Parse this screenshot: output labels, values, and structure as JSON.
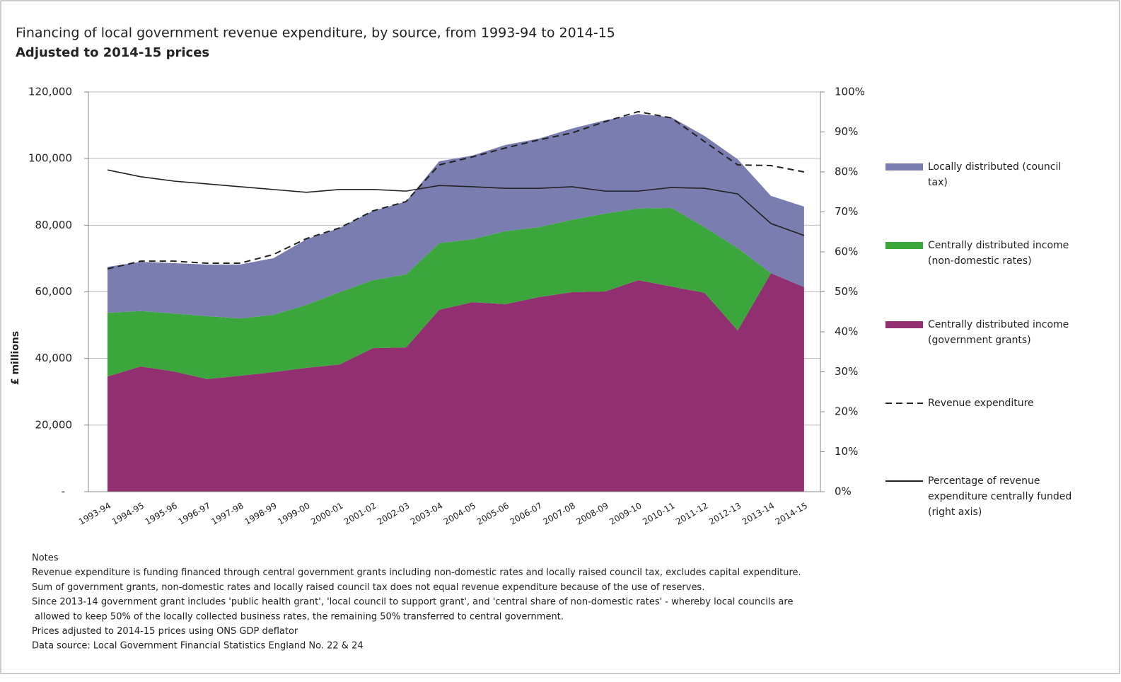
{
  "chart_data": {
    "type": "area",
    "title": "Financing of local government revenue expenditure, by source, from 1993-94 to 2014-15",
    "subtitle": "Adjusted to 2014-15 prices",
    "y_label": "£ millions",
    "categories": [
      "1993-94",
      "1994-95",
      "1995-96",
      "1996-97",
      "1997-98",
      "1998-99",
      "1999-00",
      "2000-01",
      "2001-02",
      "2002-03",
      "2003-04",
      "2004-05",
      "2005-06",
      "2006-07",
      "2007-08",
      "2008-09",
      "2009-10",
      "2010-11",
      "2011-12",
      "2012-13",
      "2013-14",
      "2014-15"
    ],
    "series": [
      {
        "name": "Locally distributed (council tax)",
        "type": "area",
        "color": "#797db0",
        "values": [
          13800,
          14800,
          15100,
          15500,
          16200,
          17000,
          19700,
          19300,
          20800,
          21900,
          24600,
          25100,
          25900,
          26600,
          27400,
          28000,
          28400,
          27200,
          27400,
          26700,
          23200,
          24200
        ]
      },
      {
        "name": "Centrally distributed income (non-domestic rates)",
        "type": "area",
        "color": "#3aa63c",
        "values": [
          19100,
          16600,
          17400,
          18900,
          17200,
          17200,
          18900,
          21700,
          20400,
          21900,
          20000,
          18900,
          21900,
          21000,
          21700,
          23400,
          21500,
          23600,
          19700,
          24700,
          0,
          0
        ]
      },
      {
        "name": "Centrally distributed income (government grants)",
        "type": "area",
        "color": "#922f70",
        "values": [
          34600,
          37600,
          36100,
          33800,
          34800,
          35900,
          37200,
          38200,
          43100,
          43300,
          54600,
          56900,
          56300,
          58400,
          59900,
          60100,
          63500,
          61600,
          59700,
          48400,
          65600,
          61400
        ]
      },
      {
        "name": "Revenue expenditure",
        "type": "line",
        "dash": true,
        "color": "#222222",
        "values": [
          66900,
          69200,
          69200,
          68600,
          68600,
          71200,
          76000,
          79200,
          84300,
          87100,
          98100,
          100500,
          103200,
          105600,
          107700,
          111100,
          114100,
          112200,
          105100,
          98100,
          97900,
          96000
        ]
      },
      {
        "name": "Percentage of revenue expenditure centrally funded (right axis)",
        "type": "line",
        "axis": "y2",
        "color": "#222222",
        "values": [
          80.5,
          78.8,
          77.7,
          77.0,
          76.3,
          75.6,
          74.9,
          75.6,
          75.6,
          75.2,
          76.6,
          76.3,
          75.9,
          75.9,
          76.3,
          75.2,
          75.2,
          76.1,
          75.9,
          74.5,
          67.1,
          64.1
        ]
      }
    ],
    "ylim": [
      0,
      120000
    ],
    "yticks": [
      {
        "value": 0,
        "label": "-"
      },
      {
        "value": 20000,
        "label": "20,000"
      },
      {
        "value": 40000,
        "label": "40,000"
      },
      {
        "value": 60000,
        "label": "60,000"
      },
      {
        "value": 80000,
        "label": "80,000"
      },
      {
        "value": 100000,
        "label": "100,000"
      },
      {
        "value": 120000,
        "label": "120,000"
      }
    ],
    "y2lim": [
      0,
      100
    ],
    "y2ticks": [
      {
        "value": 0,
        "label": "0%"
      },
      {
        "value": 10,
        "label": "10%"
      },
      {
        "value": 20,
        "label": "20%"
      },
      {
        "value": 30,
        "label": "30%"
      },
      {
        "value": 40,
        "label": "40%"
      },
      {
        "value": 50,
        "label": "50%"
      },
      {
        "value": 60,
        "label": "60%"
      },
      {
        "value": 70,
        "label": "70%"
      },
      {
        "value": 80,
        "label": "80%"
      },
      {
        "value": 90,
        "label": "90%"
      },
      {
        "value": 100,
        "label": "100%"
      }
    ],
    "grid": true,
    "legend": "right",
    "notes": [
      "Notes",
      "Revenue expenditure is funding financed through central government grants including non-domestic rates and locally raised council tax, excludes capital expenditure.",
      "Sum of government grants, non-domestic rates and locally raised council tax does not equal revenue expenditure because of the use of reserves.",
      "Since 2013-14 government grant includes 'public health grant', 'local council to support grant', and 'central share of non-domestic rates' - whereby local councils are",
      " allowed to keep 50% of the locally collected business rates, the remaining 50% transferred to central government.",
      "Prices adjusted to 2014-15 prices using ONS GDP deflator",
      "Data source: Local Government Financial Statistics England No. 22 & 24"
    ]
  }
}
